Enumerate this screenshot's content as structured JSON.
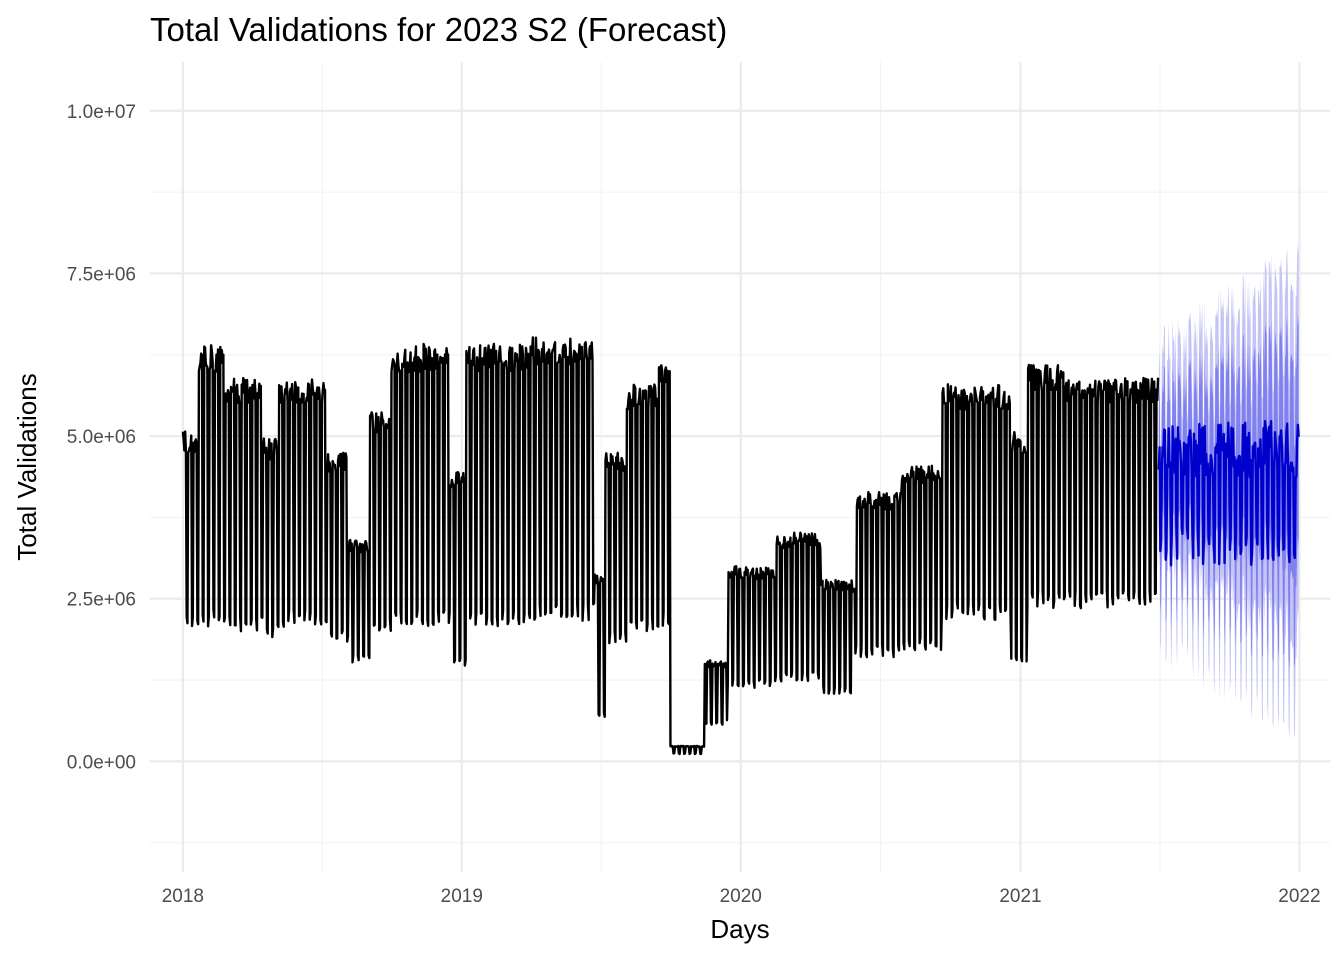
{
  "chart_data": {
    "type": "line",
    "title": "Total Validations for 2023 S2 (Forecast)",
    "xlabel": "Days",
    "ylabel": "Total Validations",
    "x_ticks": [
      "2018",
      "2019",
      "2020",
      "2021",
      "2022"
    ],
    "y_ticks": [
      "0.0e+00",
      "2.5e+06",
      "5.0e+06",
      "7.5e+06",
      "1.0e+07"
    ],
    "x_range": [
      "2017-11-19",
      "2022-02-10"
    ],
    "ylim": [
      -1700000,
      10750000
    ],
    "grid": true,
    "colors": {
      "actual": "#000000",
      "forecast_mean": "#0000cc",
      "band_80": "#8080ee",
      "band_95": "#c4c4f6"
    },
    "series": [
      {
        "type": "weekly_profile",
        "segments": [
          {
            "start": "2018-01-01",
            "end": "2018-01-20",
            "weekday": 4900000,
            "weekend": 2100000
          },
          {
            "start": "2018-01-20",
            "end": "2018-02-26",
            "weekday": 6200000,
            "weekend": 2200000
          },
          {
            "start": "2018-02-26",
            "end": "2018-04-16",
            "weekday": 5700000,
            "weekend": 2100000
          },
          {
            "start": "2018-04-16",
            "end": "2018-05-07",
            "weekday": 4800000,
            "weekend": 2000000
          },
          {
            "start": "2018-05-07",
            "end": "2018-07-09",
            "weekday": 5700000,
            "weekend": 2200000
          },
          {
            "start": "2018-07-09",
            "end": "2018-08-06",
            "weekday": 4600000,
            "weekend": 1900000
          },
          {
            "start": "2018-08-06",
            "end": "2018-09-03",
            "weekday": 3300000,
            "weekend": 1600000
          },
          {
            "start": "2018-09-03",
            "end": "2018-10-01",
            "weekday": 5200000,
            "weekend": 2100000
          },
          {
            "start": "2018-10-01",
            "end": "2018-12-17",
            "weekday": 6200000,
            "weekend": 2200000
          },
          {
            "start": "2018-12-17",
            "end": "2019-01-07",
            "weekday": 4300000,
            "weekend": 1500000
          },
          {
            "start": "2019-01-07",
            "end": "2019-04-01",
            "weekday": 6200000,
            "weekend": 2200000
          },
          {
            "start": "2019-04-01",
            "end": "2019-06-24",
            "weekday": 6300000,
            "weekend": 2300000
          },
          {
            "start": "2019-06-24",
            "end": "2019-07-08",
            "weekday": 2800000,
            "weekend": 700000
          },
          {
            "start": "2019-07-08",
            "end": "2019-08-05",
            "weekday": 4600000,
            "weekend": 1900000
          },
          {
            "start": "2019-08-05",
            "end": "2019-09-16",
            "weekday": 5600000,
            "weekend": 2100000
          },
          {
            "start": "2019-09-16",
            "end": "2019-10-01",
            "weekday": 5900000,
            "weekend": 2200000
          },
          {
            "start": "2019-10-01",
            "end": "2019-11-15",
            "weekday": 230000,
            "weekend": 120000
          },
          {
            "start": "2019-11-15",
            "end": "2019-12-15",
            "weekday": 1500000,
            "weekend": 600000
          },
          {
            "start": "2019-12-15",
            "end": "2020-02-15",
            "weekday": 2900000,
            "weekend": 1200000
          },
          {
            "start": "2020-02-15",
            "end": "2020-04-15",
            "weekday": 3400000,
            "weekend": 1300000
          },
          {
            "start": "2020-04-15",
            "end": "2020-05-30",
            "weekday": 2700000,
            "weekend": 1100000
          },
          {
            "start": "2020-05-30",
            "end": "2020-07-30",
            "weekday": 4000000,
            "weekend": 1700000
          },
          {
            "start": "2020-07-30",
            "end": "2020-09-20",
            "weekday": 4400000,
            "weekend": 1800000
          },
          {
            "start": "2020-09-20",
            "end": "2020-12-20",
            "weekday": 5600000,
            "weekend": 2300000
          },
          {
            "start": "2020-12-20",
            "end": "2021-01-10",
            "weekday": 4900000,
            "weekend": 1600000
          },
          {
            "start": "2021-01-10",
            "end": "2021-03-01",
            "weekday": 5900000,
            "weekend": 2500000
          },
          {
            "start": "2021-03-01",
            "end": "2021-07-01",
            "weekday": 5700000,
            "weekend": 2500000
          }
        ]
      },
      {
        "name": "forecast",
        "start": "2021-07-01",
        "end": "2021-12-31",
        "mean_weekday": 4800000,
        "mean_weekend": 3300000,
        "band80_halfwidth": 1700000,
        "band95_halfwidth": 2800000
      }
    ]
  }
}
